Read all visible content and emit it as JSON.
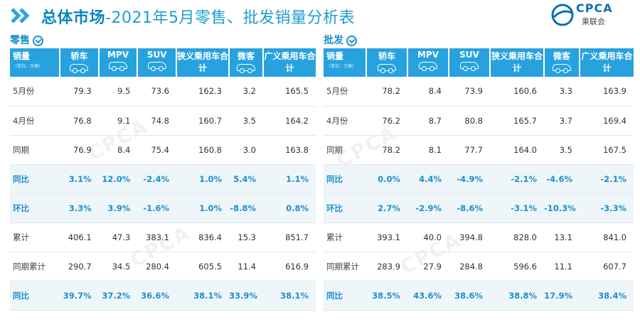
{
  "header": {
    "title_bold": "总体市场",
    "title_rest": "-2021年5月零售、批发销量分析表",
    "logo_text": "CPCA",
    "logo_sub": "乘联会",
    "watermark": "CPCA"
  },
  "retail": {
    "section_title": "零售",
    "columns": [
      "销量",
      "轿车",
      "MPV",
      "SUV",
      "狭义乘用车合计",
      "微客",
      "广义乘用车合计"
    ],
    "unit": "（单位：万辆）",
    "rows": [
      {
        "label": "5月份",
        "values": [
          "79.3",
          "9.5",
          "73.6",
          "162.3",
          "3.2",
          "165.5"
        ],
        "pct": false
      },
      {
        "label": "4月份",
        "values": [
          "76.8",
          "9.1",
          "74.8",
          "160.7",
          "3.5",
          "164.2"
        ],
        "pct": false
      },
      {
        "label": "同期",
        "values": [
          "76.9",
          "8.4",
          "75.4",
          "160.8",
          "3.0",
          "163.8"
        ],
        "pct": false
      },
      {
        "label": "同比",
        "values": [
          "3.1%",
          "12.0%",
          "-2.4%",
          "1.0%",
          "5.4%",
          "1.1%"
        ],
        "pct": true
      },
      {
        "label": "环比",
        "values": [
          "3.3%",
          "3.9%",
          "-1.6%",
          "1.0%",
          "-8.8%",
          "0.8%"
        ],
        "pct": true
      },
      {
        "label": "累计",
        "values": [
          "406.1",
          "47.3",
          "383.1",
          "836.4",
          "15.3",
          "851.7"
        ],
        "pct": false
      },
      {
        "label": "同期累计",
        "values": [
          "290.7",
          "34.5",
          "280.4",
          "605.5",
          "11.4",
          "616.9"
        ],
        "pct": false
      },
      {
        "label": "同比",
        "values": [
          "39.7%",
          "37.2%",
          "36.6%",
          "38.1%",
          "33.9%",
          "38.1%"
        ],
        "pct": true
      }
    ]
  },
  "wholesale": {
    "section_title": "批发",
    "columns": [
      "销量",
      "轿车",
      "MPV",
      "SUV",
      "狭义乘用车合计",
      "微客",
      "广义乘用车合计"
    ],
    "unit": "（单位：万辆）",
    "rows": [
      {
        "label": "5月份",
        "values": [
          "78.2",
          "8.4",
          "73.9",
          "160.6",
          "3.3",
          "163.9"
        ],
        "pct": false
      },
      {
        "label": "4月份",
        "values": [
          "76.2",
          "8.7",
          "80.8",
          "165.7",
          "3.7",
          "169.4"
        ],
        "pct": false
      },
      {
        "label": "同期",
        "values": [
          "78.2",
          "8.1",
          "77.7",
          "164.0",
          "3.5",
          "167.5"
        ],
        "pct": false
      },
      {
        "label": "同比",
        "values": [
          "0.0%",
          "4.4%",
          "-4.9%",
          "-2.1%",
          "-4.6%",
          "-2.1%"
        ],
        "pct": true
      },
      {
        "label": "环比",
        "values": [
          "2.7%",
          "-2.9%",
          "-8.6%",
          "-3.1%",
          "-10.3%",
          "-3.3%"
        ],
        "pct": true
      },
      {
        "label": "累计",
        "values": [
          "393.1",
          "40.0",
          "394.8",
          "828.0",
          "13.1",
          "841.0"
        ],
        "pct": false
      },
      {
        "label": "同期累计",
        "values": [
          "283.9",
          "27.9",
          "284.8",
          "596.6",
          "11.1",
          "607.7"
        ],
        "pct": false
      },
      {
        "label": "同比",
        "values": [
          "38.5%",
          "43.6%",
          "38.6%",
          "38.8%",
          "17.9%",
          "38.4%"
        ],
        "pct": true
      }
    ]
  }
}
